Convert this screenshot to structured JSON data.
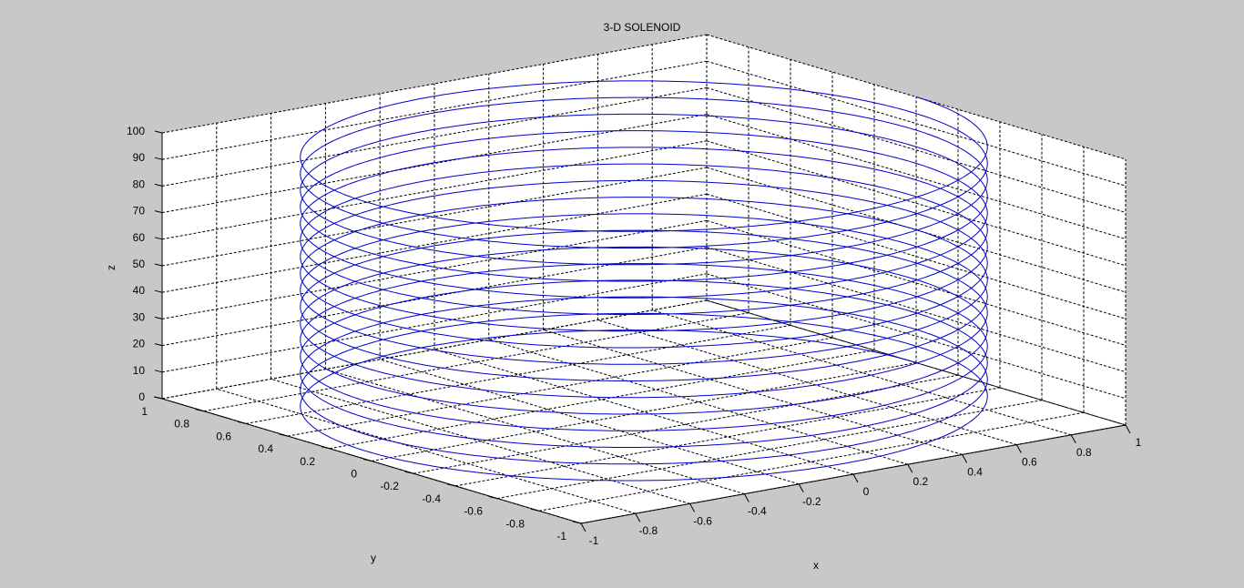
{
  "chart_data": {
    "type": "line3d",
    "title": "3-D SOLENOID",
    "xlabel": "x",
    "ylabel": "y",
    "zlabel": "z",
    "xlim": [
      -1,
      1
    ],
    "ylim": [
      -1,
      1
    ],
    "zlim": [
      0,
      100
    ],
    "grid": true,
    "box": true,
    "x_ticks": [
      "-1",
      "-0.8",
      "-0.6",
      "-0.4",
      "-0.2",
      "0",
      "0.2",
      "0.4",
      "0.6",
      "0.8",
      "1"
    ],
    "y_ticks": [
      "-1",
      "-0.8",
      "-0.6",
      "-0.4",
      "-0.2",
      "0",
      "0.2",
      "0.4",
      "0.6",
      "0.8",
      "1"
    ],
    "z_ticks": [
      "0",
      "10",
      "20",
      "30",
      "40",
      "50",
      "60",
      "70",
      "80",
      "90",
      "100"
    ],
    "series": [
      {
        "curve": "helix",
        "x_equation": "cos(t)",
        "y_equation": "sin(t)",
        "radius": 1,
        "z_range": [
          0,
          100
        ],
        "turns": 16,
        "color": "#0000cc"
      }
    ],
    "colors": {
      "background": "#c8c8c8",
      "axes_face": "#ffffff",
      "grid": "#000000",
      "line": "#0000cc"
    }
  }
}
